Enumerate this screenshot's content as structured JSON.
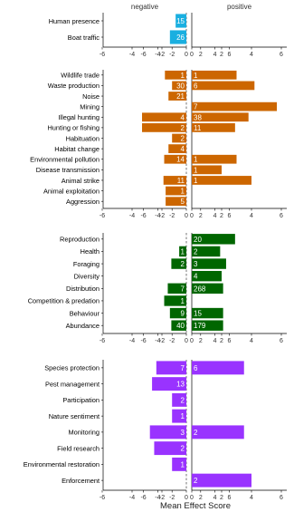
{
  "chart_data": [
    {
      "type": "bar",
      "orientation": "horizontal",
      "facet_headers": [
        "negative",
        "positive"
      ],
      "color": "#1aafe0",
      "xlim": [
        -7,
        6
      ],
      "x_ticks": [
        "-6",
        "-4",
        "-2",
        "0",
        "2",
        "4",
        "6"
      ],
      "categories": [
        "Human presence",
        "Boat traffic"
      ],
      "negative": {
        "values": [
          -1.5,
          -2.3
        ],
        "counts": [
          "15",
          "26"
        ]
      },
      "positive": {
        "values": [
          null,
          null
        ],
        "counts": [
          null,
          null
        ]
      }
    },
    {
      "type": "bar",
      "orientation": "horizontal",
      "color": "#cc6600",
      "xlim": [
        -7,
        6
      ],
      "x_ticks": [
        "-6",
        "-4",
        "-2",
        "0",
        "2",
        "4",
        "6"
      ],
      "categories": [
        "Wildlife trade",
        "Waste production",
        "Noise",
        "Mining",
        "Illegal hunting",
        "Hunting or fishing",
        "Habituation",
        "Habitat change",
        "Environmental pollution",
        "Disease transmission",
        "Animal strike",
        "Animal exploitation",
        "Aggression"
      ],
      "negative": {
        "values": [
          -3,
          -2,
          -2.5,
          null,
          -6.2,
          -6.2,
          -2,
          -2.5,
          -3.1,
          null,
          -3.2,
          -2.9,
          -2.9
        ],
        "counts": [
          "1",
          "30",
          "21",
          null,
          "4",
          "2",
          "2",
          "4",
          "14",
          null,
          "11",
          "1",
          "5"
        ]
      },
      "positive": {
        "values": [
          3,
          4.2,
          null,
          5.7,
          3.8,
          2.9,
          null,
          null,
          3,
          2,
          4,
          null,
          null
        ],
        "counts": [
          "1",
          "6",
          null,
          "7",
          "38",
          "11",
          null,
          null,
          "1",
          "1",
          "1",
          null,
          null
        ]
      }
    },
    {
      "type": "bar",
      "orientation": "horizontal",
      "color": "#006600",
      "xlim": [
        -7,
        6
      ],
      "x_ticks": [
        "-6",
        "-4",
        "-2",
        "0",
        "2",
        "4",
        "6"
      ],
      "categories": [
        "Reproduction",
        "Health",
        "Foraging",
        "Diversity",
        "Distribution",
        "Competition & predation",
        "Behaviour",
        "Abundance"
      ],
      "negative": {
        "values": [
          null,
          -1,
          -2.1,
          null,
          -2.6,
          -3.1,
          -2.3,
          -2.1
        ],
        "counts": [
          null,
          "1",
          "2",
          null,
          "7",
          "1",
          "9",
          "40"
        ]
      },
      "positive": {
        "values": [
          2.9,
          1.9,
          2.3,
          2,
          2.1,
          null,
          2.1,
          2.1
        ],
        "counts": [
          "20",
          "2",
          "3",
          "4",
          "268",
          null,
          "15",
          "179"
        ]
      }
    },
    {
      "type": "bar",
      "orientation": "horizontal",
      "color": "#9933ff",
      "xlim": [
        -7,
        6
      ],
      "x_ticks": [
        "-6",
        "-4",
        "-2",
        "0",
        "2",
        "4",
        "6"
      ],
      "xlabel": "Mean Effect Score",
      "categories": [
        "Species protection",
        "Pest management",
        "Participation",
        "Nature sentiment",
        "Monitoring",
        "Field research",
        "Environmental restoration",
        "Enforcement"
      ],
      "negative": {
        "values": [
          -4.2,
          -4.8,
          -2,
          -2,
          -5.1,
          -4.5,
          -2,
          null
        ],
        "counts": [
          "7",
          "13",
          "2",
          "1",
          "3",
          "2",
          "1",
          null
        ]
      },
      "positive": {
        "values": [
          3.5,
          null,
          null,
          null,
          3.5,
          null,
          null,
          4
        ],
        "counts": [
          "6",
          null,
          null,
          null,
          "2",
          null,
          null,
          "2"
        ]
      }
    }
  ]
}
